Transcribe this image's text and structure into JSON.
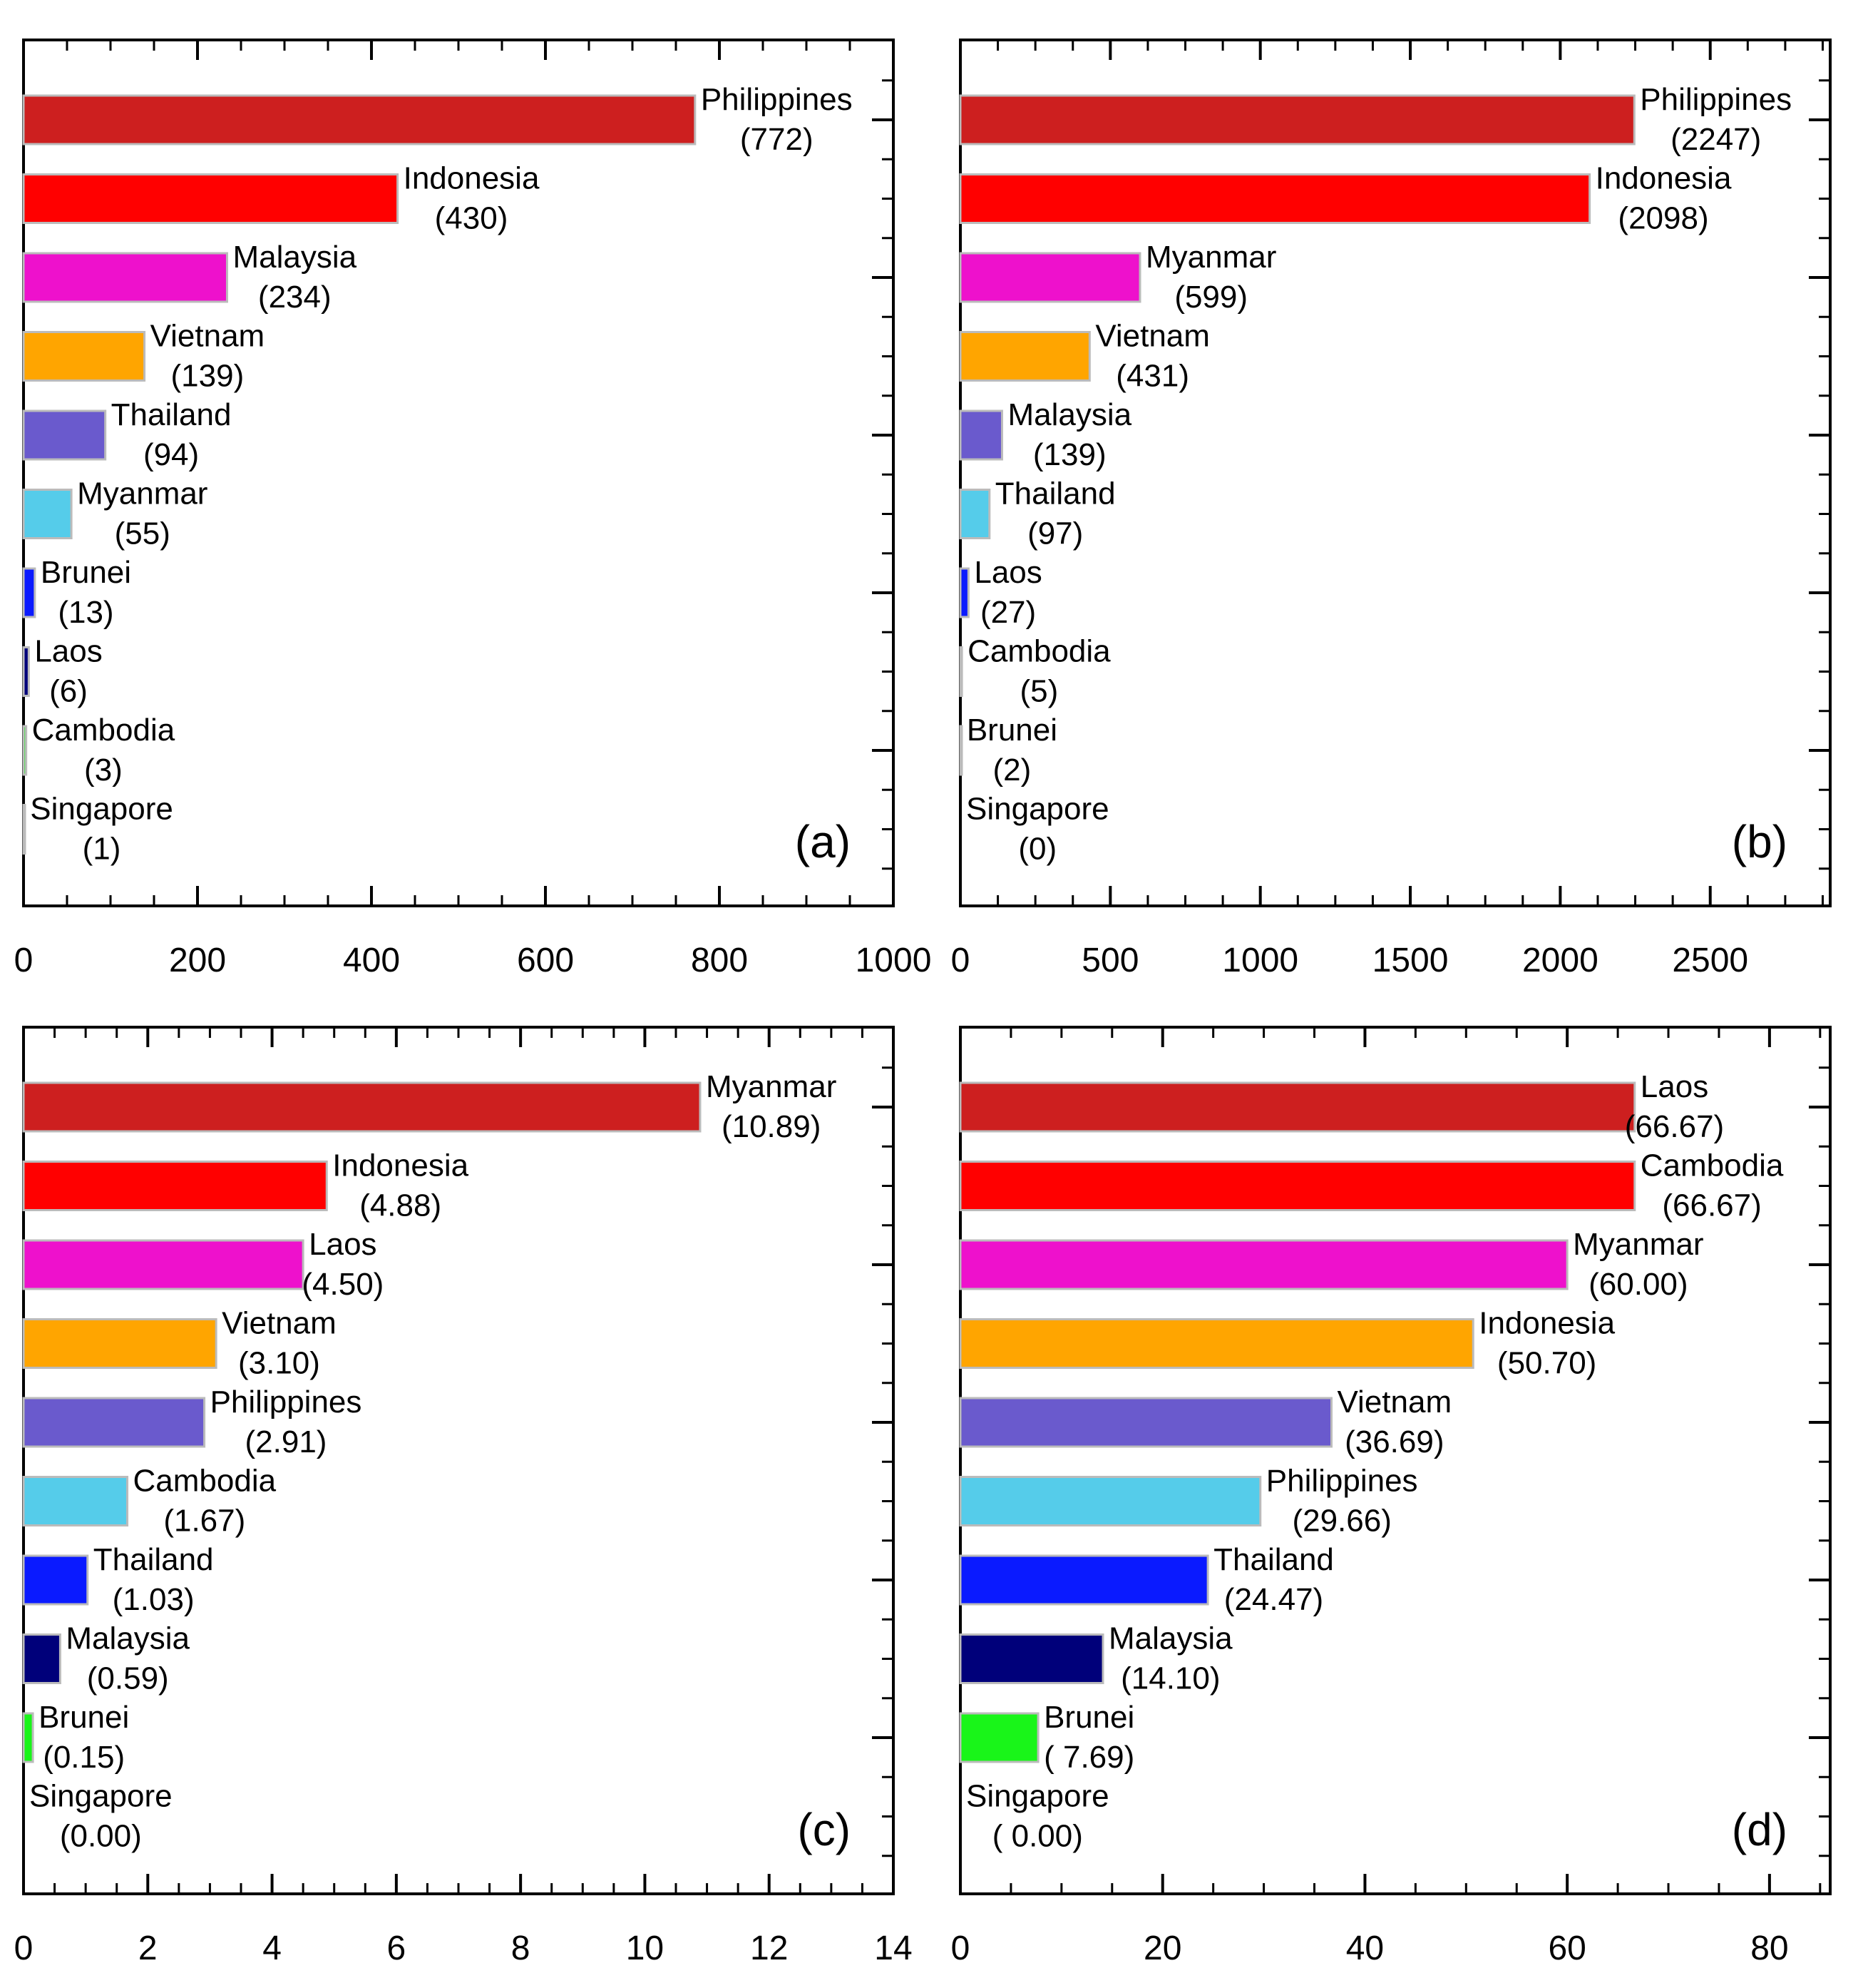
{
  "chart_data": [
    {
      "type": "bar",
      "orientation": "horizontal",
      "panel_label": "(a)",
      "xlim": [
        0,
        1000
      ],
      "xticks": [
        "0",
        "200",
        "400",
        "600",
        "800",
        "1000"
      ],
      "categories": [
        "Philippines",
        "Indonesia",
        "Malaysia",
        "Vietnam",
        "Thailand",
        "Myanmar",
        "Brunei",
        "Laos",
        "Cambodia",
        "Singapore"
      ],
      "values": [
        772,
        430,
        234,
        139,
        94,
        55,
        13,
        6,
        3,
        1
      ],
      "value_labels": [
        "(772)",
        "(430)",
        "(234)",
        "(139)",
        "(94)",
        "(55)",
        "(13)",
        "(6)",
        "(3)",
        "(1)"
      ]
    },
    {
      "type": "bar",
      "orientation": "horizontal",
      "panel_label": "(b)",
      "xlim": [
        0,
        2900
      ],
      "xticks": [
        "0",
        "500",
        "1000",
        "1500",
        "2000",
        "2500"
      ],
      "categories": [
        "Philippines",
        "Indonesia",
        "Myanmar",
        "Vietnam",
        "Malaysia",
        "Thailand",
        "Laos",
        "Cambodia",
        "Brunei",
        "Singapore"
      ],
      "values": [
        2247,
        2098,
        599,
        431,
        139,
        97,
        27,
        5,
        2,
        0
      ],
      "value_labels": [
        "(2247)",
        "(2098)",
        "(599)",
        "(431)",
        "(139)",
        "(97)",
        "(27)",
        "(5)",
        "(2)",
        "(0)"
      ]
    },
    {
      "type": "bar",
      "orientation": "horizontal",
      "panel_label": "(c)",
      "xlim": [
        0,
        14
      ],
      "xticks": [
        "0",
        "2",
        "4",
        "6",
        "8",
        "10",
        "12",
        "14"
      ],
      "categories": [
        "Myanmar",
        "Indonesia",
        "Laos",
        "Vietnam",
        "Philippines",
        "Cambodia",
        "Thailand",
        "Malaysia",
        "Brunei",
        "Singapore"
      ],
      "values": [
        10.89,
        4.88,
        4.5,
        3.1,
        2.91,
        1.67,
        1.03,
        0.59,
        0.15,
        0.0
      ],
      "value_labels": [
        "(10.89)",
        "(4.88)",
        "(4.50)",
        "(3.10)",
        "(2.91)",
        "(1.67)",
        "(1.03)",
        "(0.59)",
        "(0.15)",
        "(0.00)"
      ]
    },
    {
      "type": "bar",
      "orientation": "horizontal",
      "panel_label": "(d)",
      "xlim": [
        0,
        86
      ],
      "xticks": [
        "0",
        "20",
        "40",
        "60",
        "80"
      ],
      "categories": [
        "Laos",
        "Cambodia",
        "Myanmar",
        "Indonesia",
        "Vietnam",
        "Philippines",
        "Thailand",
        "Malaysia",
        "Brunei",
        "Singapore"
      ],
      "values": [
        66.67,
        66.67,
        60.0,
        50.7,
        36.69,
        29.66,
        24.47,
        14.1,
        7.69,
        0.0
      ],
      "value_labels": [
        "(66.67)",
        "(66.67)",
        "(60.00)",
        "(50.70)",
        "(36.69)",
        "(29.66)",
        "(24.47)",
        "(14.10)",
        "( 7.69)",
        "( 0.00)"
      ]
    }
  ],
  "bar_colors": [
    "#cd1f1f",
    "#ff0000",
    "#ee11cc",
    "#ffa500",
    "#6a5acd",
    "#55ccea",
    "#0a1aff",
    "#00007a",
    "#19f519",
    "#808080"
  ]
}
